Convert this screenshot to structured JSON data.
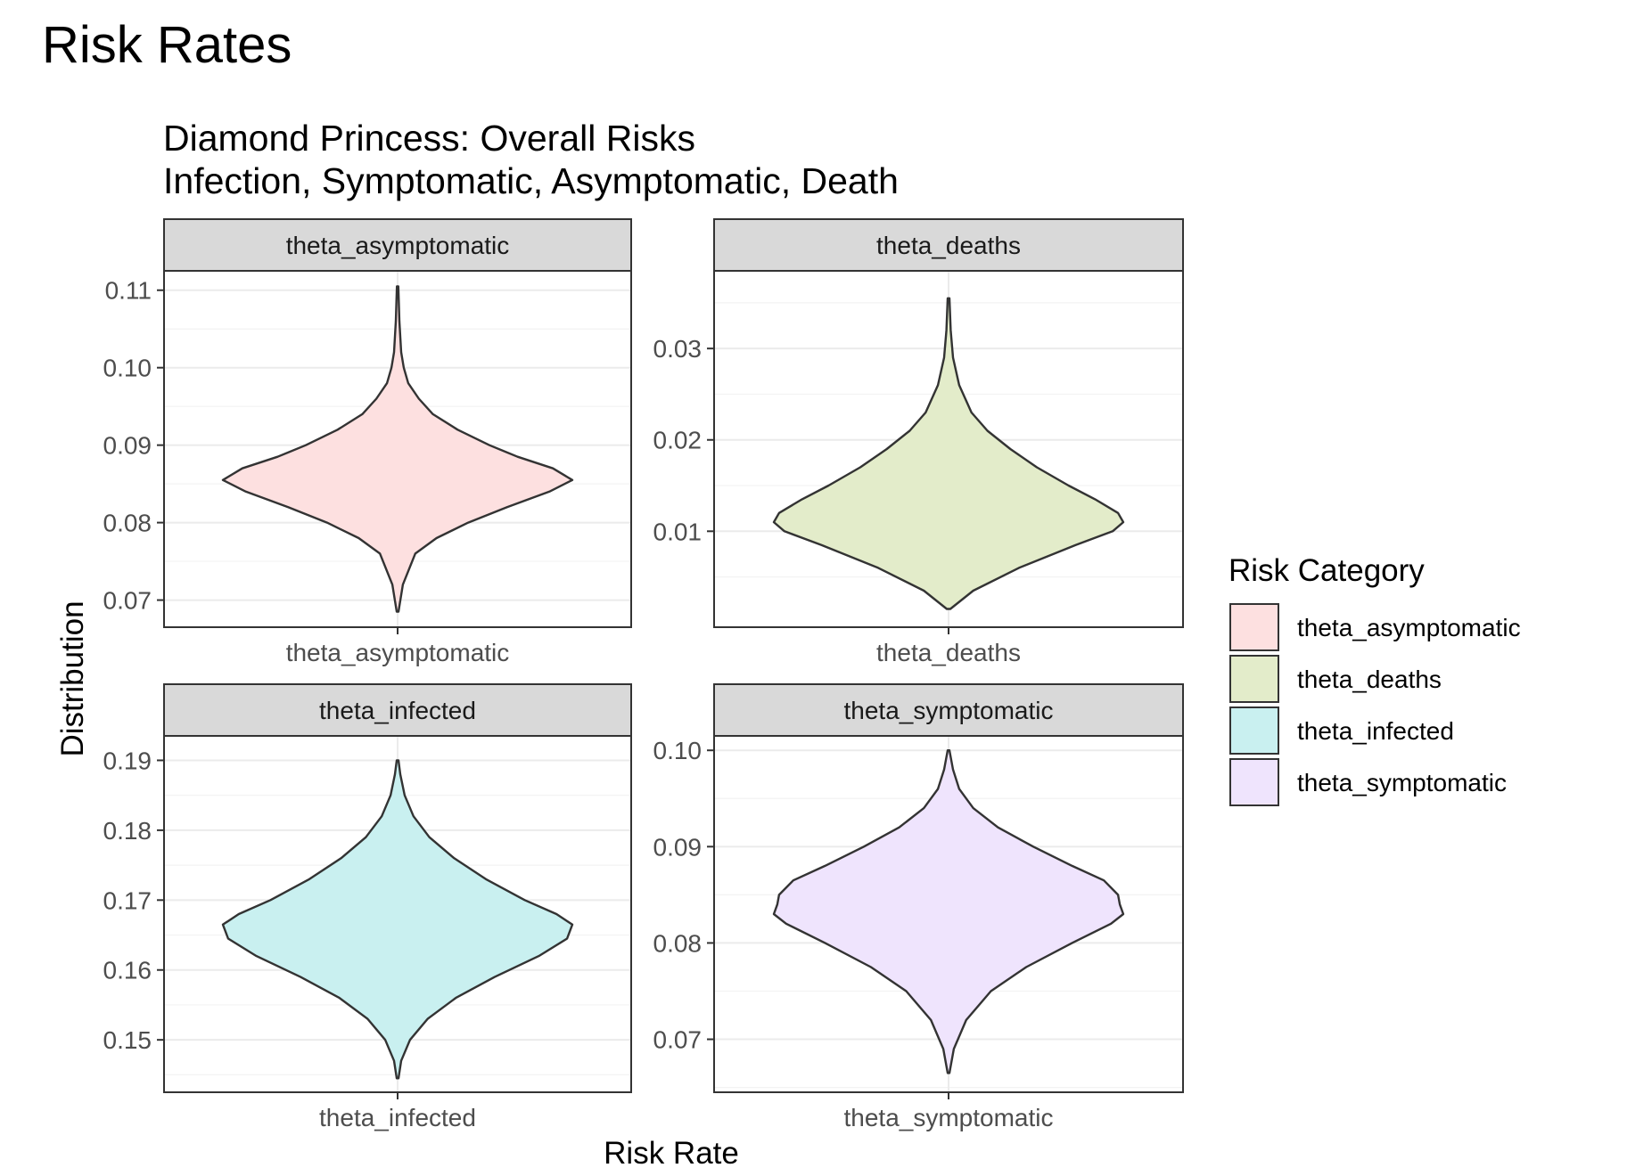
{
  "page_title": "Risk Rates",
  "chart_data": {
    "type": "violin",
    "title_lines": [
      "Diamond Princess: Overall Risks",
      "Infection, Symptomatic, Asymptomatic, Death"
    ],
    "xlabel": "Risk Rate",
    "ylabel": "Distribution",
    "legend": {
      "title": "Risk Category",
      "placement": "right",
      "items": [
        {
          "label": "theta_asymptomatic",
          "color": "#fde0e0"
        },
        {
          "label": "theta_deaths",
          "color": "#e3ecca"
        },
        {
          "label": "theta_infected",
          "color": "#c9f0f0"
        },
        {
          "label": "theta_symptomatic",
          "color": "#efe4fd"
        }
      ]
    },
    "facets": [
      {
        "strip": "theta_asymptomatic",
        "category": "theta_asymptomatic",
        "color": "#fde0e0",
        "ylim": [
          0.0665,
          0.1125
        ],
        "yticks": [
          0.07,
          0.08,
          0.09,
          0.1,
          0.11
        ],
        "ytick_labels": [
          "0.07",
          "0.08",
          "0.09",
          "0.10",
          "0.11"
        ],
        "density": {
          "y": [
            0.0685,
            0.072,
            0.076,
            0.078,
            0.08,
            0.082,
            0.084,
            0.0855,
            0.087,
            0.0885,
            0.09,
            0.092,
            0.094,
            0.096,
            0.098,
            0.1,
            0.102,
            0.106,
            0.1105
          ],
          "half_width": [
            0.005,
            0.03,
            0.1,
            0.22,
            0.4,
            0.62,
            0.86,
            0.99,
            0.88,
            0.68,
            0.52,
            0.34,
            0.2,
            0.12,
            0.06,
            0.035,
            0.02,
            0.01,
            0.004
          ]
        }
      },
      {
        "strip": "theta_deaths",
        "category": "theta_deaths",
        "color": "#e3ecca",
        "ylim": [
          -0.0005,
          0.0385
        ],
        "yticks": [
          0.01,
          0.02,
          0.03
        ],
        "ytick_labels": [
          "0.01",
          "0.02",
          "0.03"
        ],
        "density": {
          "y": [
            0.0015,
            0.0035,
            0.006,
            0.0085,
            0.01,
            0.011,
            0.012,
            0.0135,
            0.015,
            0.017,
            0.019,
            0.021,
            0.023,
            0.026,
            0.029,
            0.032,
            0.0355
          ],
          "half_width": [
            0.01,
            0.14,
            0.4,
            0.72,
            0.93,
            0.99,
            0.96,
            0.83,
            0.68,
            0.5,
            0.35,
            0.22,
            0.13,
            0.06,
            0.025,
            0.012,
            0.005
          ]
        }
      },
      {
        "strip": "theta_infected",
        "category": "theta_infected",
        "color": "#c9f0f0",
        "ylim": [
          0.1425,
          0.1935
        ],
        "yticks": [
          0.15,
          0.16,
          0.17,
          0.18,
          0.19
        ],
        "ytick_labels": [
          "0.15",
          "0.16",
          "0.17",
          "0.18",
          "0.19"
        ],
        "density": {
          "y": [
            0.1445,
            0.147,
            0.15,
            0.153,
            0.156,
            0.159,
            0.162,
            0.1645,
            0.1665,
            0.168,
            0.17,
            0.173,
            0.176,
            0.179,
            0.182,
            0.185,
            0.188,
            0.19
          ],
          "half_width": [
            0.005,
            0.02,
            0.07,
            0.17,
            0.33,
            0.55,
            0.8,
            0.96,
            0.99,
            0.9,
            0.72,
            0.5,
            0.32,
            0.18,
            0.09,
            0.04,
            0.015,
            0.005
          ]
        }
      },
      {
        "strip": "theta_symptomatic",
        "category": "theta_symptomatic",
        "color": "#efe4fd",
        "ylim": [
          0.0645,
          0.1015
        ],
        "yticks": [
          0.07,
          0.08,
          0.09,
          0.1
        ],
        "ytick_labels": [
          "0.07",
          "0.08",
          "0.09",
          "0.10"
        ],
        "density": {
          "y": [
            0.0665,
            0.069,
            0.072,
            0.075,
            0.0775,
            0.08,
            0.082,
            0.083,
            0.084,
            0.085,
            0.0865,
            0.088,
            0.09,
            0.092,
            0.094,
            0.096,
            0.098,
            0.1
          ],
          "half_width": [
            0.005,
            0.03,
            0.1,
            0.24,
            0.44,
            0.7,
            0.92,
            0.99,
            0.97,
            0.96,
            0.88,
            0.7,
            0.48,
            0.28,
            0.14,
            0.06,
            0.025,
            0.005
          ]
        }
      }
    ]
  }
}
